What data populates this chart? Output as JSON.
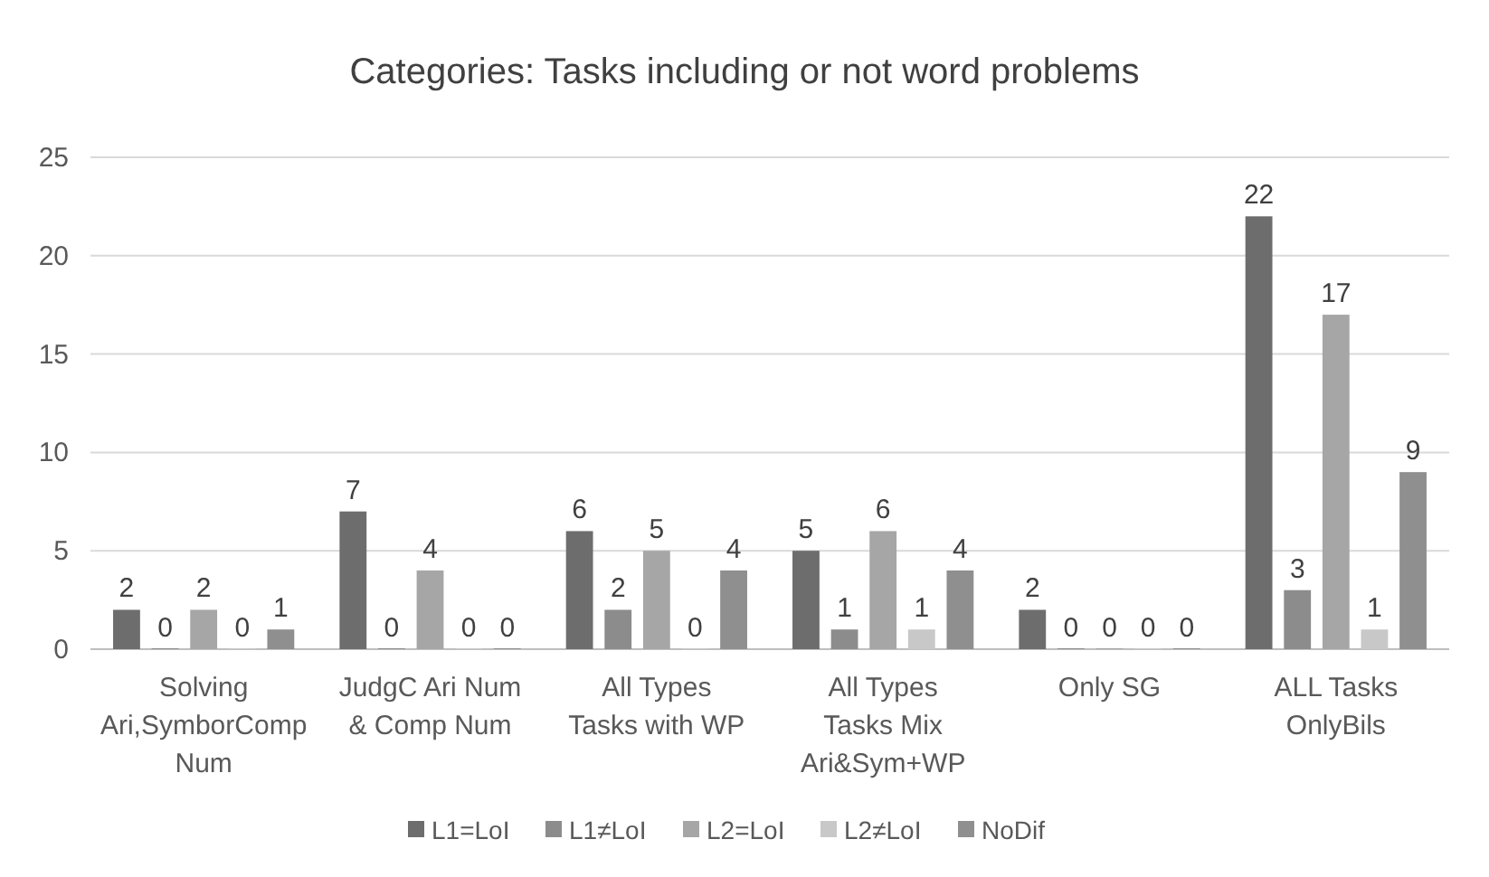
{
  "chart_data": {
    "type": "bar",
    "title": "Categories: Tasks including or not word problems",
    "categories": [
      "Solving Ari,SymborComp Num",
      "JudgC Ari Num & Comp Num",
      "All Types Tasks with WP",
      "All Types Tasks Mix Ari&Sym+WP",
      "Only SG",
      "ALL Tasks OnlyBils"
    ],
    "series": [
      {
        "name": "L1=LoI",
        "color": "#6d6d6d",
        "values": [
          2,
          7,
          6,
          5,
          2,
          22
        ]
      },
      {
        "name": "L1≠LoI",
        "color": "#8c8c8c",
        "values": [
          0,
          0,
          2,
          1,
          0,
          3
        ]
      },
      {
        "name": "L2=LoI",
        "color": "#a6a6a6",
        "values": [
          2,
          4,
          5,
          6,
          0,
          17
        ]
      },
      {
        "name": "L2≠LoI",
        "color": "#c8c8c8",
        "values": [
          0,
          0,
          0,
          1,
          0,
          1
        ]
      },
      {
        "name": "NoDif",
        "color": "#8f8f8f",
        "values": [
          1,
          0,
          4,
          4,
          0,
          9
        ]
      }
    ],
    "ylim": [
      0,
      25
    ],
    "yticks": [
      0,
      5,
      10,
      15,
      20,
      25
    ],
    "grid": "y",
    "legend": "bottom",
    "data_labels": true
  }
}
